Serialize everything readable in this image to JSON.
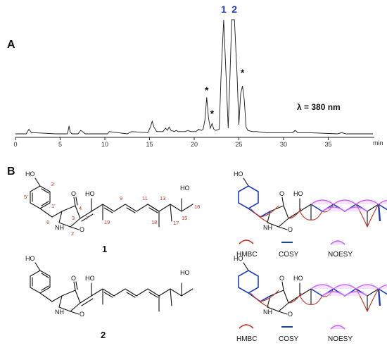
{
  "panels": {
    "a": "A",
    "b": "B"
  },
  "chromatogram": {
    "x_min": 0,
    "x_max": 40,
    "x_ticks": [
      0,
      5,
      10,
      15,
      20,
      25,
      30,
      35
    ],
    "x_unit": "min",
    "wavelength_label": "λ = 380 nm",
    "peaks": [
      {
        "label": "1",
        "rt": 23.3,
        "color": "#1f3fbf"
      },
      {
        "label": "2",
        "rt": 24.5,
        "color": "#1f3fbf"
      }
    ],
    "marked_peaks": [
      {
        "label": "*",
        "rt": 21.4
      },
      {
        "label": "*",
        "rt": 22.0
      },
      {
        "label": "*",
        "rt": 25.4
      }
    ]
  },
  "chart_data": {
    "type": "line",
    "title": "",
    "xlabel": "min",
    "ylabel": "",
    "xlim": [
      0,
      40
    ],
    "series": [
      {
        "x": [
          0,
          1.2,
          1.5,
          1.8,
          2.2,
          4.5,
          5.8,
          5.9,
          6.0,
          6.1,
          6.3,
          7.0,
          7.3,
          7.5,
          7.8,
          10.3,
          10.5,
          12.5,
          13.0,
          14.8,
          15.1,
          15.3,
          15.5,
          15.8,
          16.5,
          16.8,
          17.0,
          17.2,
          17.4,
          17.8,
          18.0,
          18.2,
          18.4,
          19.0,
          19.3,
          19.6,
          20.2,
          20.5,
          20.8,
          21.0,
          21.2,
          21.4,
          21.6,
          21.8,
          22.0,
          22.2,
          22.4,
          22.8,
          23.0,
          23.3,
          23.6,
          23.8,
          24.0,
          24.2,
          24.5,
          24.8,
          25.0,
          25.2,
          25.4,
          25.6,
          25.8,
          26.0,
          26.5,
          27.0,
          28.0,
          29.0,
          30.0,
          31.0,
          31.3,
          31.6,
          33.0,
          36.0,
          36.5,
          37.0,
          40.0
        ],
        "y": [
          0,
          0,
          0.04,
          0.01,
          0.01,
          0,
          0,
          0.03,
          0.07,
          0.02,
          0,
          0,
          0.03,
          0.02,
          0,
          0,
          0.02,
          0,
          0.02,
          0.01,
          0.06,
          0.11,
          0.06,
          0.02,
          0.02,
          0.05,
          0.03,
          0.06,
          0.03,
          0.02,
          0.03,
          0.02,
          0.02,
          0.02,
          0.03,
          0.02,
          0.02,
          0.04,
          0.03,
          0.04,
          0.12,
          0.32,
          0.14,
          0.05,
          0.09,
          0.04,
          0.03,
          0.04,
          0.5,
          1.0,
          0.45,
          0.05,
          0.5,
          1.0,
          1.0,
          0.5,
          0.08,
          0.35,
          0.42,
          0.3,
          0.06,
          0.03,
          0.02,
          0.02,
          0.01,
          0.01,
          0.01,
          0.01,
          0.03,
          0.01,
          0.01,
          0,
          0.01,
          0,
          0
        ]
      }
    ]
  },
  "structures": [
    {
      "id": "1",
      "label": "1",
      "atoms": {
        "ho": "HO",
        "oh": "HO",
        "hn": "NH",
        "o_top": "O",
        "o_bot": "O",
        "oh2": "HO"
      },
      "numbers": [
        "3'",
        "5'",
        "1'",
        "6",
        "4",
        "3",
        "7",
        "2",
        "9",
        "11",
        "13",
        "15",
        "16",
        "19",
        "18",
        "17",
        "1"
      ]
    },
    {
      "id": "2",
      "label": "2",
      "atoms": {
        "ho": "HO",
        "oh": "HO",
        "hn": "NH",
        "o_top": "O",
        "o_bot": "O",
        "oh2": "HO"
      }
    }
  ],
  "correlations": {
    "structure_1_labels": {
      "oh": "HO",
      "hn": "NH",
      "ho_ring": "HO",
      "o1": "O",
      "o2": "O",
      "oh2": "HO"
    },
    "structure_2_labels": {
      "oh": "HO",
      "hn": "NH",
      "ho_ring": "HO",
      "o1": "O",
      "o2": "O",
      "oh2": "HO"
    },
    "legend": [
      {
        "label": "HMBC",
        "color": "#c0392b"
      },
      {
        "label": "COSY",
        "color": "#1f3fbf"
      },
      {
        "label": "NOESY",
        "color": "#cc66ff"
      }
    ],
    "legend2": [
      {
        "label": "HMBC"
      },
      {
        "label": "COSY"
      },
      {
        "label": "NOESY"
      }
    ]
  }
}
